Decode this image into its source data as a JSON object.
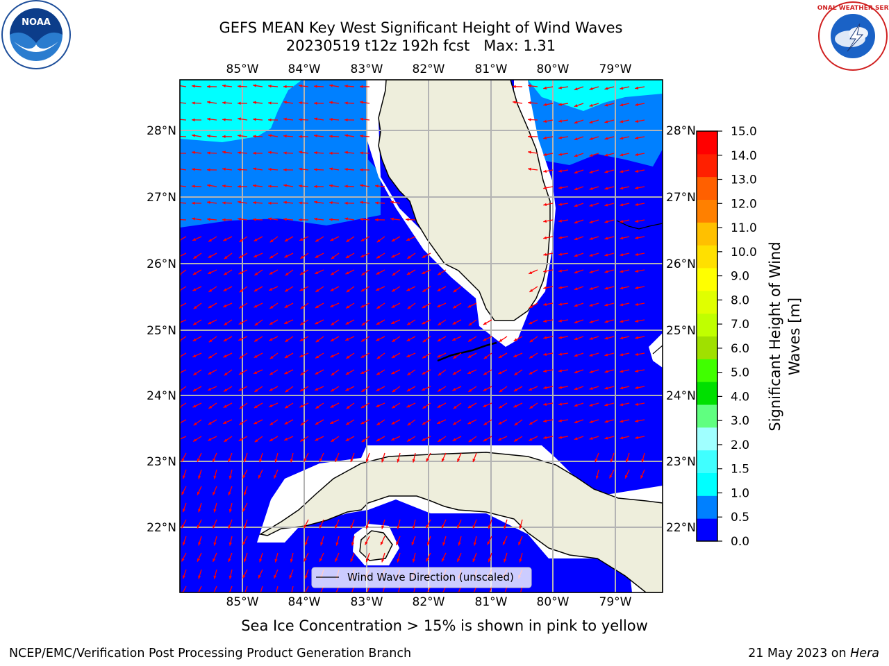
{
  "header": {
    "title_line1": "GEFS MEAN Key West Significant Height of Wind Waves",
    "title_line2": "20230519 t12z 192h fcst   Max: 1.31"
  },
  "logos": {
    "left": {
      "icon": "noaa-logo",
      "text": "NOAA"
    },
    "right": {
      "icon": "nws-logo",
      "text": "NATIONAL WEATHER SERVICE"
    }
  },
  "map": {
    "lon_ticks": [
      "85°W",
      "84°W",
      "83°W",
      "82°W",
      "81°W",
      "80°W",
      "79°W"
    ],
    "lat_ticks": [
      "28°N",
      "27°N",
      "26°N",
      "25°N",
      "24°N",
      "23°N",
      "22°N"
    ],
    "legend_label": "Wind Wave Direction (unscaled)",
    "colors": {
      "ocean_low": "#0000ff",
      "ocean_mid": "#0080ff",
      "ocean_high": "#00ffff",
      "land": "#eeeedc",
      "arrow": "#ff0000",
      "grid": "#b3b3b3"
    }
  },
  "colorbar": {
    "label_line1": "Significant Height of Wind",
    "label_line2": "Waves [m]",
    "ticks": [
      "0.0",
      "0.5",
      "1.0",
      "1.5",
      "2.0",
      "3.0",
      "4.0",
      "5.0",
      "6.0",
      "7.0",
      "8.0",
      "9.0",
      "10.0",
      "11.0",
      "12.0",
      "13.0",
      "14.0",
      "15.0"
    ],
    "colors": [
      "#0000ff",
      "#0080ff",
      "#00ffff",
      "#40ffff",
      "#a0ffff",
      "#60ff80",
      "#00e000",
      "#40ff00",
      "#a0e000",
      "#c0ff00",
      "#e0ff00",
      "#ffff00",
      "#ffe000",
      "#ffc000",
      "#ff8000",
      "#ff6000",
      "#ff2000",
      "#ff0000"
    ]
  },
  "notes": {
    "ice": "Sea Ice Concentration > 15% is shown in pink to yellow"
  },
  "footer": {
    "left": "NCEP/EMC/Verification Post Processing Product Generation Branch",
    "date": "21 May 2023 on ",
    "machine": "Hera"
  }
}
